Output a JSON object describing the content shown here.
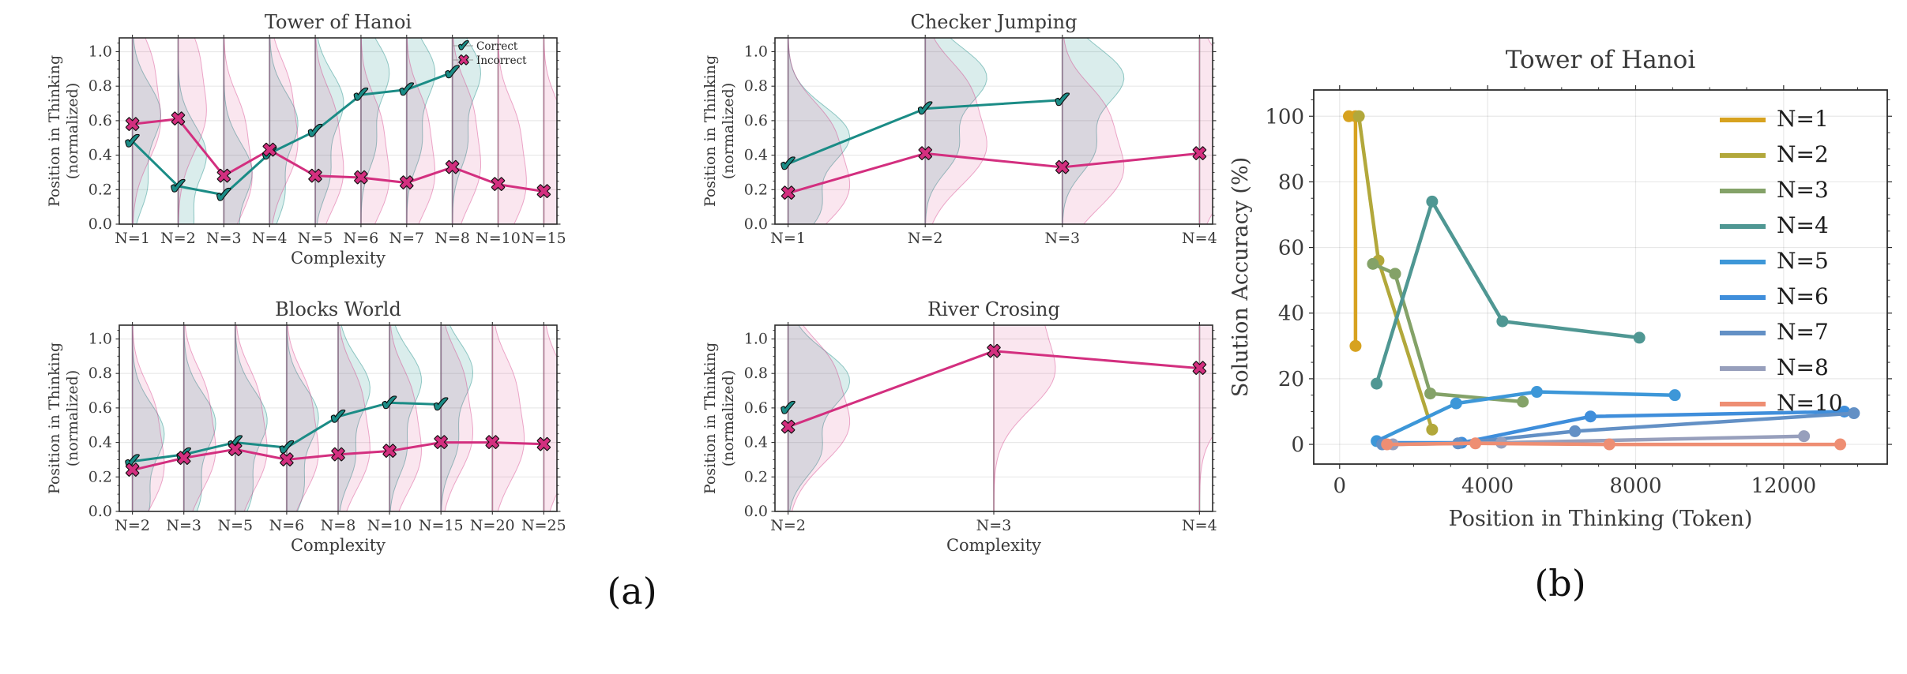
{
  "figure": {
    "background": "#ffffff",
    "captions": {
      "a": "(a)",
      "b": "(b)"
    },
    "markers": {
      "correct_glyph": "✔",
      "incorrect_glyph": "✖"
    }
  },
  "colors": {
    "correct": "#1b8c86",
    "incorrect": "#d32f7f",
    "correct_fill": "rgba(27,140,134,0.16)",
    "incorrect_fill": "rgba(211,47,127,0.12)",
    "axis": "#2b2b2b",
    "text": "#3a3a3a",
    "grid": "rgba(0,0,0,0.09)",
    "spine": "rgba(90,90,90,0.5)"
  },
  "chart_data": [
    {
      "key": "tower_of_hanoi_position",
      "type": "violin-line",
      "title": "Tower of Hanoi",
      "xlabel": "Complexity",
      "ylabel": [
        "Position in Thinking",
        "(normalized)"
      ],
      "categories": [
        "N=1",
        "N=2",
        "N=3",
        "N=4",
        "N=5",
        "N=6",
        "N=7",
        "N=8",
        "N=10",
        "N=15"
      ],
      "yticks": [
        0,
        0.2,
        0.4,
        0.6,
        0.8,
        1.0
      ],
      "ylim": [
        0,
        1.08
      ],
      "legend": true,
      "series": {
        "correct": {
          "label": "Correct",
          "values": [
            0.48,
            0.22,
            0.17,
            0.41,
            0.54,
            0.75,
            0.78,
            0.88,
            null,
            null
          ]
        },
        "incorrect": {
          "label": "Incorrect",
          "values": [
            0.58,
            0.61,
            0.28,
            0.43,
            0.28,
            0.27,
            0.24,
            0.33,
            0.23,
            0.19
          ]
        }
      }
    },
    {
      "key": "checker_jumping_position",
      "type": "violin-line",
      "title": "Checker Jumping",
      "xlabel": "",
      "ylabel": [
        "Position in Thinking",
        "(normalized)"
      ],
      "categories": [
        "N=1",
        "N=2",
        "N=3",
        "N=4"
      ],
      "yticks": [
        0,
        0.2,
        0.4,
        0.6,
        0.8,
        1.0
      ],
      "ylim": [
        0,
        1.08
      ],
      "legend": false,
      "series": {
        "correct": {
          "label": "Correct",
          "values": [
            0.35,
            0.67,
            0.72,
            null
          ]
        },
        "incorrect": {
          "label": "Incorrect",
          "values": [
            0.18,
            0.41,
            0.33,
            0.41
          ]
        }
      }
    },
    {
      "key": "blocks_world_position",
      "type": "violin-line",
      "title": "Blocks World",
      "xlabel": "Complexity",
      "ylabel": [
        "Position in Thinking",
        "(normalized)"
      ],
      "categories": [
        "N=2",
        "N=3",
        "N=5",
        "N=6",
        "N=8",
        "N=10",
        "N=15",
        "N=20",
        "N=25"
      ],
      "yticks": [
        0,
        0.2,
        0.4,
        0.6,
        0.8,
        1.0
      ],
      "ylim": [
        0,
        1.08
      ],
      "legend": false,
      "series": {
        "correct": {
          "label": "Correct",
          "values": [
            0.29,
            0.33,
            0.4,
            0.37,
            0.55,
            0.63,
            0.62,
            null,
            null
          ]
        },
        "incorrect": {
          "label": "Incorrect",
          "values": [
            0.24,
            0.31,
            0.36,
            0.3,
            0.33,
            0.35,
            0.4,
            0.4,
            0.39
          ]
        }
      }
    },
    {
      "key": "river_crossing_position",
      "type": "violin-line",
      "title": "River Crosing",
      "xlabel": "Complexity",
      "ylabel": [
        "Position in Thinking",
        "(normalized)"
      ],
      "categories": [
        "N=2",
        "N=3",
        "N=4"
      ],
      "yticks": [
        0,
        0.2,
        0.4,
        0.6,
        0.8,
        1.0
      ],
      "ylim": [
        0,
        1.08
      ],
      "legend": false,
      "series": {
        "correct": {
          "label": "Correct",
          "values": [
            0.6,
            null,
            null
          ]
        },
        "incorrect": {
          "label": "Incorrect",
          "values": [
            0.49,
            0.93,
            0.83
          ]
        }
      }
    },
    {
      "key": "tower_of_hanoi_accuracy",
      "type": "line",
      "title": "Tower of Hanoi",
      "xlabel": "Position in Thinking (Token)",
      "ylabel": "Solution Accuracy (%)",
      "xticks": [
        0,
        4000,
        8000,
        12000
      ],
      "yticks": [
        0,
        20,
        40,
        60,
        80,
        100
      ],
      "xlim": [
        -700,
        14800
      ],
      "ylim": [
        -6,
        108
      ],
      "legend_position": "right",
      "series": [
        {
          "name": "N=1",
          "color": "#d7a21f",
          "x": [
            250,
            430,
            430
          ],
          "y": [
            100,
            100,
            30
          ]
        },
        {
          "name": "N=2",
          "color": "#b2a83b",
          "x": [
            520,
            1050,
            2500
          ],
          "y": [
            100,
            56,
            4.5
          ]
        },
        {
          "name": "N=3",
          "color": "#84a268",
          "x": [
            900,
            1500,
            2450,
            4950
          ],
          "y": [
            55,
            52,
            15.5,
            13
          ]
        },
        {
          "name": "N=4",
          "color": "#4f9793",
          "x": [
            1000,
            2500,
            4400,
            8100
          ],
          "y": [
            18.5,
            74,
            37.5,
            32.5
          ]
        },
        {
          "name": "N=5",
          "color": "#3d97d8",
          "x": [
            1000,
            3150,
            5330,
            9060
          ],
          "y": [
            1,
            12.5,
            16,
            15
          ]
        },
        {
          "name": "N=6",
          "color": "#3f8edb",
          "x": [
            1150,
            3300,
            6780,
            13640
          ],
          "y": [
            0.5,
            0.5,
            8.5,
            10
          ]
        },
        {
          "name": "N=7",
          "color": "#6390c5",
          "x": [
            1150,
            3200,
            6360,
            13900
          ],
          "y": [
            0,
            0.3,
            4,
            9.5
          ]
        },
        {
          "name": "N=8",
          "color": "#979fbc",
          "x": [
            1440,
            4370,
            12550
          ],
          "y": [
            0,
            0.5,
            2.5
          ]
        },
        {
          "name": "N=10",
          "color": "#ee8e73",
          "x": [
            1280,
            3670,
            7290,
            13530
          ],
          "y": [
            0,
            0.3,
            0,
            0
          ]
        }
      ]
    }
  ]
}
